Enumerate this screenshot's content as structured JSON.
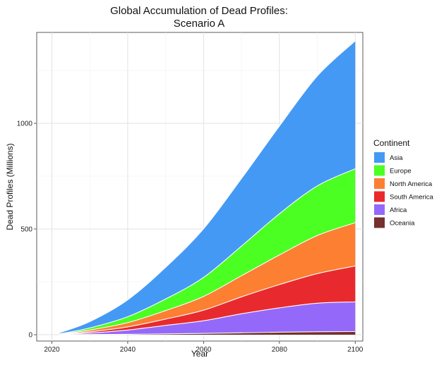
{
  "chart_data": {
    "type": "area",
    "stacked": true,
    "title": [
      "Global Accumulation of Dead Profiles:",
      "Scenario A"
    ],
    "xlabel": "Year",
    "ylabel": "Dead Profiles (Millions)",
    "xlim": [
      2016,
      2102
    ],
    "ylim": [
      -30,
      1430
    ],
    "xticks": [
      2020,
      2040,
      2060,
      2080,
      2100
    ],
    "yticks": [
      0,
      500,
      1000
    ],
    "grid": true,
    "legend_title": "Continent",
    "legend_position": "right",
    "x": [
      2022,
      2030,
      2040,
      2050,
      2060,
      2070,
      2080,
      2090,
      2100
    ],
    "series": [
      {
        "name": "Asia",
        "color": "#4499f4",
        "values": [
          5,
          30,
          80,
          150,
          230,
          320,
          415,
          520,
          605
        ]
      },
      {
        "name": "Europe",
        "color": "#4cff23",
        "values": [
          1,
          10,
          28,
          55,
          90,
          140,
          195,
          235,
          255
        ]
      },
      {
        "name": "North America",
        "color": "#fc7f32",
        "values": [
          1,
          8,
          20,
          40,
          65,
          100,
          140,
          180,
          205
        ]
      },
      {
        "name": "South America",
        "color": "#e82a2e",
        "values": [
          1,
          6,
          15,
          30,
          50,
          80,
          110,
          140,
          170
        ]
      },
      {
        "name": "Africa",
        "color": "#9469fa",
        "values": [
          1,
          7,
          20,
          40,
          60,
          90,
          115,
          135,
          140
        ]
      },
      {
        "name": "Oceania",
        "color": "#74312d",
        "values": [
          0,
          1,
          2,
          4,
          6,
          9,
          12,
          14,
          15
        ]
      }
    ]
  }
}
